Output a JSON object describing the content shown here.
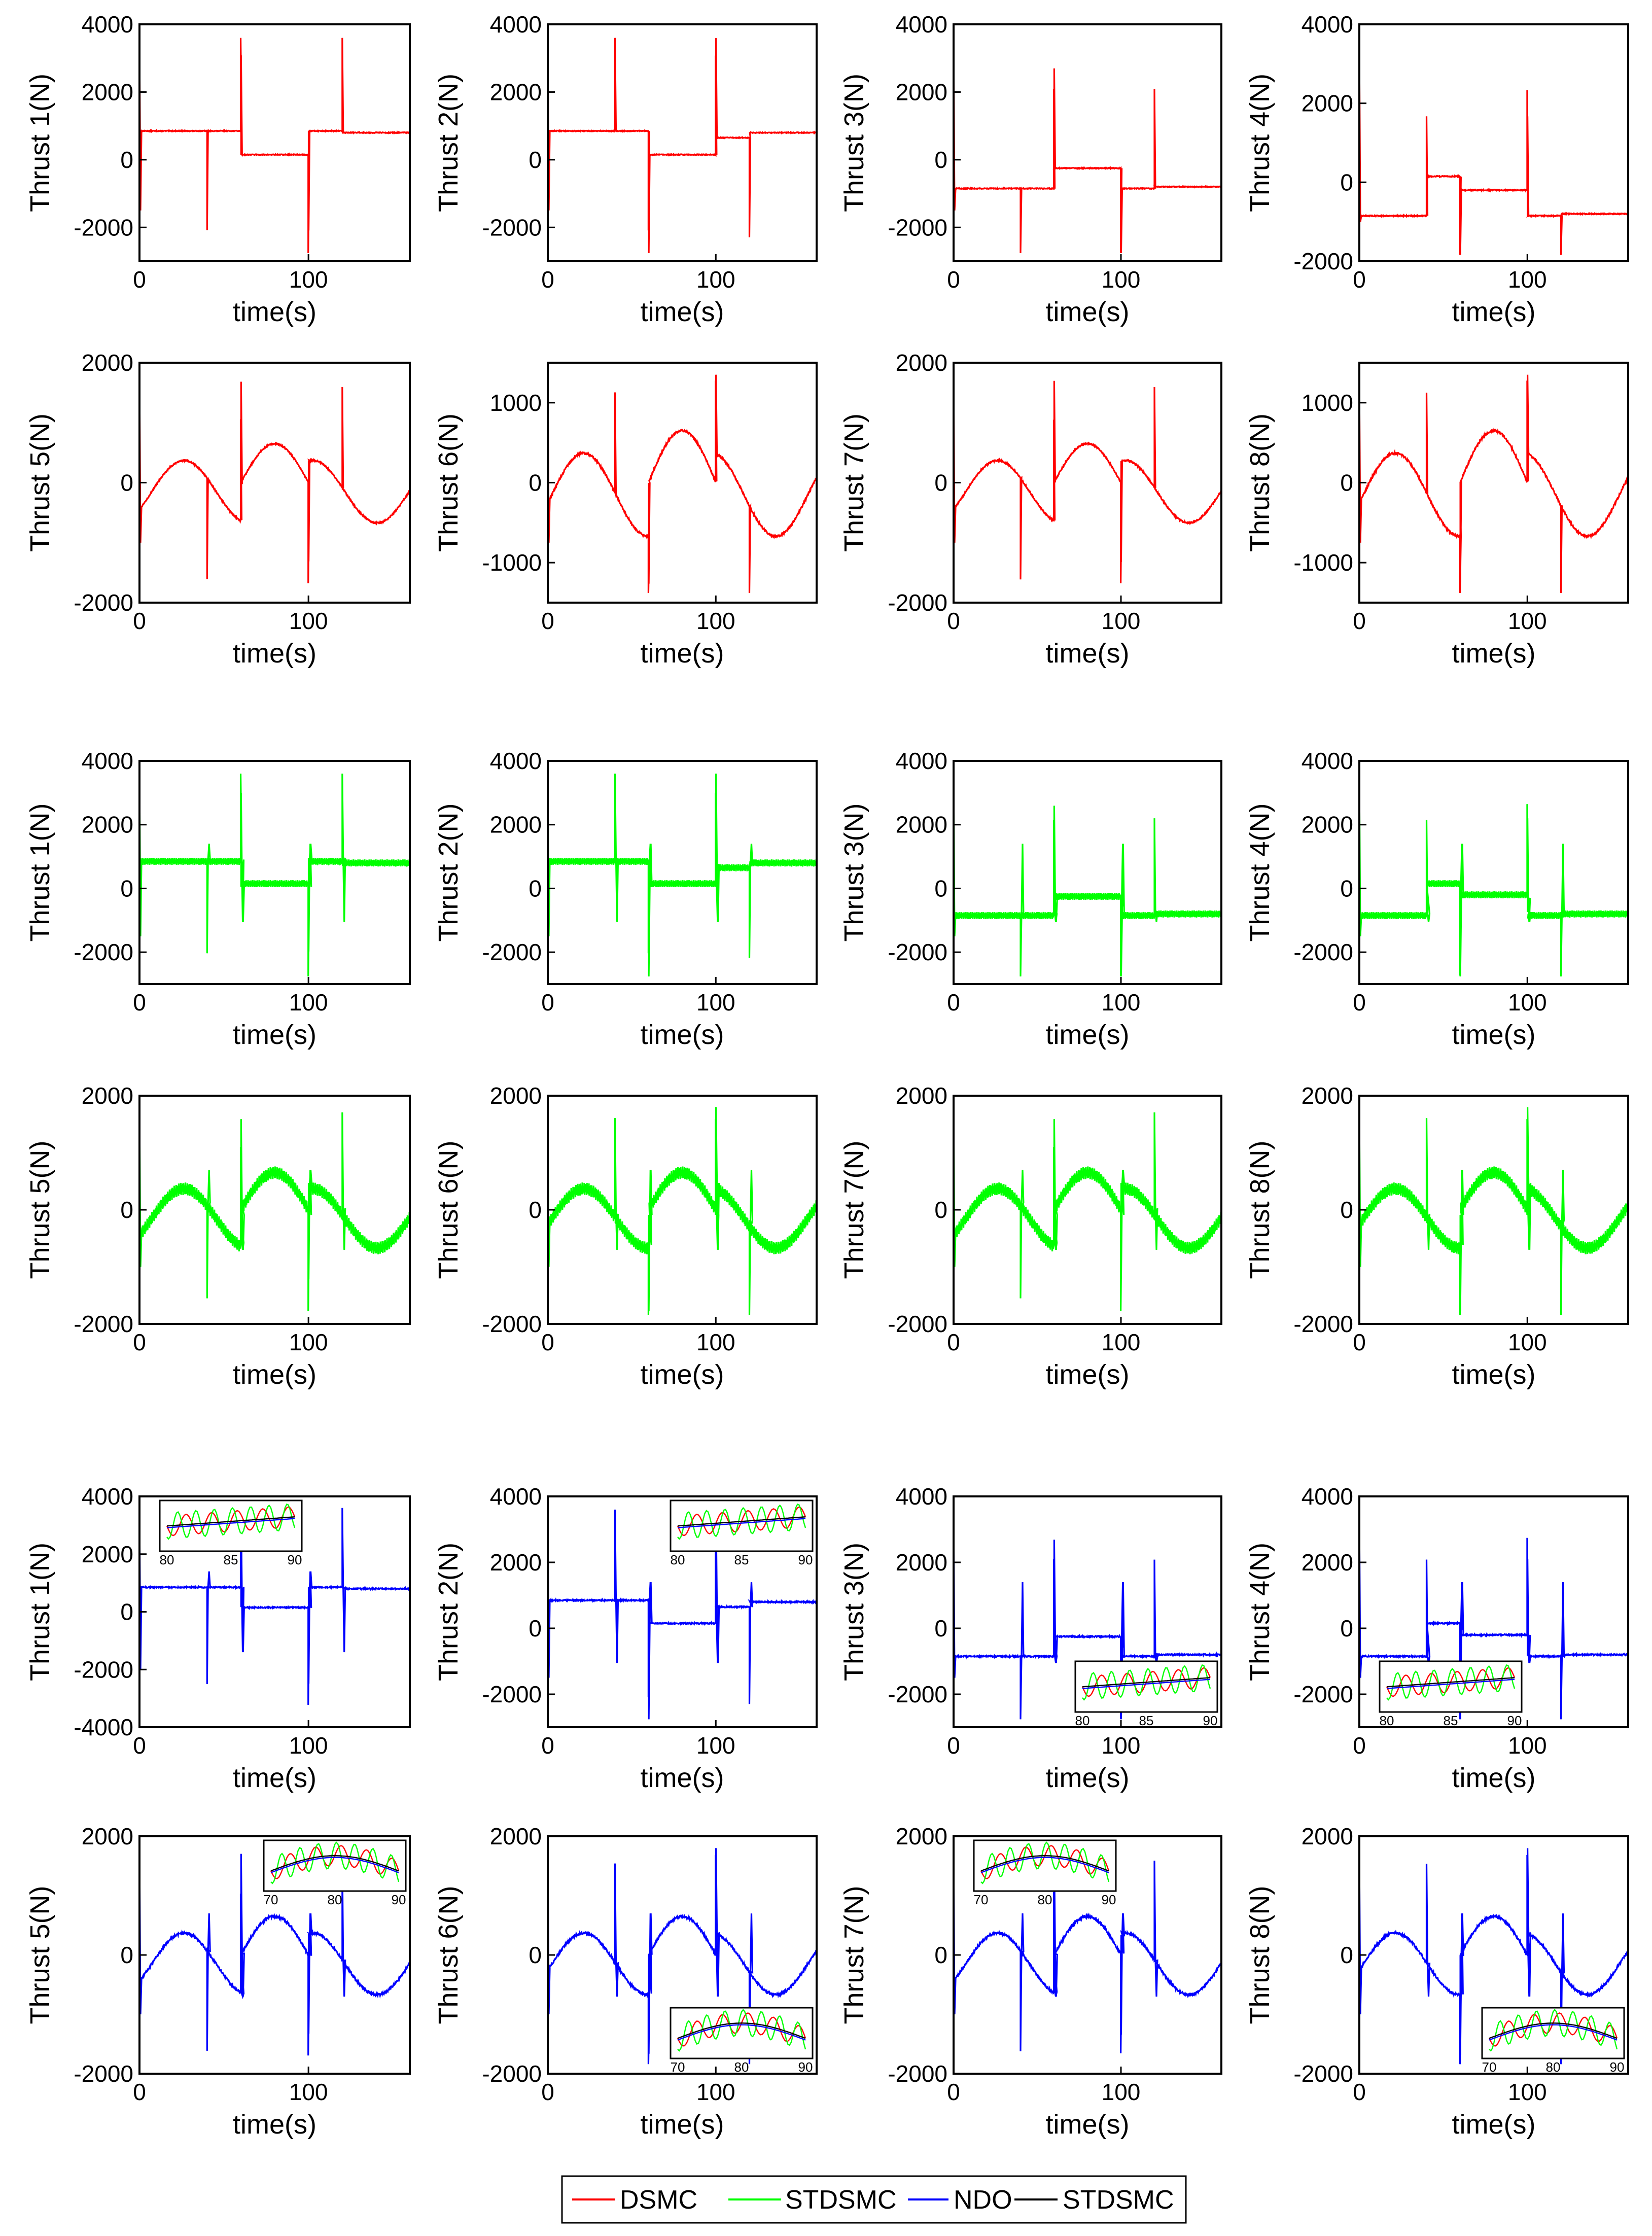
{
  "figure": {
    "x_label": "time(s)",
    "x_ticks": [
      0,
      100
    ],
    "x_range": [
      0,
      160
    ]
  },
  "colors": {
    "DSMC": "#ff0000",
    "STDSMC": "#00ff00",
    "NDO-STDSMC": "#0000ff",
    "axis": "#000000"
  },
  "legend": {
    "entries": [
      {
        "name": "DSMC",
        "color": "#ff0000"
      },
      {
        "name": "STDSMC",
        "color": "#00ff00"
      },
      {
        "name": "NDO",
        "color": "#0000ff"
      },
      {
        "name": "STDSMC",
        "color": "#000000"
      }
    ]
  },
  "chart_data": [
    {
      "type": "line",
      "group": "DSMC",
      "thruster": 1,
      "ylabel": "Thrust 1(N)",
      "ylim": [
        -3000,
        4000
      ],
      "yticks": [
        -2000,
        0,
        2000,
        4000
      ],
      "xlabel": "time(s)",
      "x": [
        0,
        100
      ],
      "y": [
        0,
        0
      ]
    },
    {
      "type": "line",
      "group": "DSMC",
      "thruster": 2,
      "ylabel": "Thrust 2(N)",
      "ylim": [
        -3000,
        4000
      ],
      "yticks": [
        -2000,
        0,
        2000,
        4000
      ],
      "xlabel": "time(s)"
    },
    {
      "type": "line",
      "group": "DSMC",
      "thruster": 3,
      "ylabel": "Thrust 3(N)",
      "ylim": [
        -3000,
        4000
      ],
      "yticks": [
        -2000,
        0,
        2000,
        4000
      ],
      "xlabel": "time(s)"
    },
    {
      "type": "line",
      "group": "DSMC",
      "thruster": 4,
      "ylabel": "Thrust 4(N)",
      "ylim": [
        -2000,
        4000
      ],
      "yticks": [
        -2000,
        0,
        2000,
        4000
      ],
      "xlabel": "time(s)"
    },
    {
      "type": "line",
      "group": "DSMC",
      "thruster": 5,
      "ylabel": "Thrust 5(N)",
      "ylim": [
        -2000,
        2000
      ],
      "yticks": [
        -2000,
        0,
        2000
      ],
      "xlabel": "time(s)"
    },
    {
      "type": "line",
      "group": "DSMC",
      "thruster": 6,
      "ylabel": "Thrust 6(N)",
      "ylim": [
        -1500,
        1500
      ],
      "yticks": [
        -1000,
        0,
        1000
      ],
      "xlabel": "time(s)"
    },
    {
      "type": "line",
      "group": "DSMC",
      "thruster": 7,
      "ylabel": "Thrust 7(N)",
      "ylim": [
        -2000,
        2000
      ],
      "yticks": [
        -2000,
        0,
        2000
      ],
      "xlabel": "time(s)"
    },
    {
      "type": "line",
      "group": "DSMC",
      "thruster": 8,
      "ylabel": "Thrust 8(N)",
      "ylim": [
        -1500,
        1500
      ],
      "yticks": [
        -1000,
        0,
        1000
      ],
      "xlabel": "time(s)"
    },
    {
      "type": "line",
      "group": "STDSMC",
      "thruster": 1,
      "ylabel": "Thrust 1(N)",
      "ylim": [
        -3000,
        4000
      ],
      "yticks": [
        -2000,
        0,
        2000,
        4000
      ],
      "xlabel": "time(s)"
    },
    {
      "type": "line",
      "group": "STDSMC",
      "thruster": 2,
      "ylabel": "Thrust 2(N)",
      "ylim": [
        -3000,
        4000
      ],
      "yticks": [
        -2000,
        0,
        2000,
        4000
      ],
      "xlabel": "time(s)"
    },
    {
      "type": "line",
      "group": "STDSMC",
      "thruster": 3,
      "ylabel": "Thrust 3(N)",
      "ylim": [
        -3000,
        4000
      ],
      "yticks": [
        -2000,
        0,
        2000,
        4000
      ],
      "xlabel": "time(s)"
    },
    {
      "type": "line",
      "group": "STDSMC",
      "thruster": 4,
      "ylabel": "Thrust 4(N)",
      "ylim": [
        -3000,
        4000
      ],
      "yticks": [
        -2000,
        0,
        2000,
        4000
      ],
      "xlabel": "time(s)"
    },
    {
      "type": "line",
      "group": "STDSMC",
      "thruster": 5,
      "ylabel": "Thrust 5(N)",
      "ylim": [
        -2000,
        2000
      ],
      "yticks": [
        -2000,
        0,
        2000
      ],
      "xlabel": "time(s)"
    },
    {
      "type": "line",
      "group": "STDSMC",
      "thruster": 6,
      "ylabel": "Thrust 6(N)",
      "ylim": [
        -2000,
        2000
      ],
      "yticks": [
        -2000,
        0,
        2000
      ],
      "xlabel": "time(s)"
    },
    {
      "type": "line",
      "group": "STDSMC",
      "thruster": 7,
      "ylabel": "Thrust 7(N)",
      "ylim": [
        -2000,
        2000
      ],
      "yticks": [
        -2000,
        0,
        2000
      ],
      "xlabel": "time(s)"
    },
    {
      "type": "line",
      "group": "STDSMC",
      "thruster": 8,
      "ylabel": "Thrust 8(N)",
      "ylim": [
        -2000,
        2000
      ],
      "yticks": [
        -2000,
        0,
        2000
      ],
      "xlabel": "time(s)"
    },
    {
      "type": "line",
      "group": "NDO-STDSMC",
      "thruster": 1,
      "ylabel": "Thrust 1(N)",
      "ylim": [
        -4000,
        4000
      ],
      "yticks": [
        -4000,
        -2000,
        0,
        2000,
        4000
      ],
      "xlabel": "time(s)",
      "inset": {
        "pos": "top-left",
        "xticks": [
          80,
          85,
          90
        ]
      }
    },
    {
      "type": "line",
      "group": "NDO-STDSMC",
      "thruster": 2,
      "ylabel": "Thrust 2(N)",
      "ylim": [
        -3000,
        4000
      ],
      "yticks": [
        -2000,
        0,
        2000,
        4000
      ],
      "xlabel": "time(s)",
      "inset": {
        "pos": "top-right",
        "xticks": [
          80,
          85,
          90
        ]
      }
    },
    {
      "type": "line",
      "group": "NDO-STDSMC",
      "thruster": 3,
      "ylabel": "Thrust 3(N)",
      "ylim": [
        -3000,
        4000
      ],
      "yticks": [
        -2000,
        0,
        2000,
        4000
      ],
      "xlabel": "time(s)",
      "inset": {
        "pos": "bottom-right",
        "xticks": [
          80,
          85,
          90
        ]
      }
    },
    {
      "type": "line",
      "group": "NDO-STDSMC",
      "thruster": 4,
      "ylabel": "Thrust 4(N)",
      "ylim": [
        -3000,
        4000
      ],
      "yticks": [
        -2000,
        0,
        2000,
        4000
      ],
      "xlabel": "time(s)",
      "inset": {
        "pos": "bottom-left",
        "xticks": [
          80,
          85,
          90
        ]
      }
    },
    {
      "type": "line",
      "group": "NDO-STDSMC",
      "thruster": 5,
      "ylabel": "Thrust 5(N)",
      "ylim": [
        -2000,
        2000
      ],
      "yticks": [
        -2000,
        0,
        2000
      ],
      "xlabel": "time(s)",
      "inset": {
        "pos": "top-right",
        "xticks": [
          70,
          80,
          90
        ]
      }
    },
    {
      "type": "line",
      "group": "NDO-STDSMC",
      "thruster": 6,
      "ylabel": "Thrust 6(N)",
      "ylim": [
        -2000,
        2000
      ],
      "yticks": [
        -2000,
        0,
        2000
      ],
      "xlabel": "time(s)",
      "inset": {
        "pos": "bottom-right",
        "xticks": [
          70,
          80,
          90
        ]
      }
    },
    {
      "type": "line",
      "group": "NDO-STDSMC",
      "thruster": 7,
      "ylabel": "Thrust 7(N)",
      "ylim": [
        -2000,
        2000
      ],
      "yticks": [
        -2000,
        0,
        2000
      ],
      "xlabel": "time(s)",
      "inset": {
        "pos": "top-left",
        "xticks": [
          70,
          80,
          90
        ]
      }
    },
    {
      "type": "line",
      "group": "NDO-STDSMC",
      "thruster": 8,
      "ylabel": "Thrust 8(N)",
      "ylim": [
        -2000,
        2000
      ],
      "yticks": [
        -2000,
        0,
        2000
      ],
      "xlabel": "time(s)",
      "inset": {
        "pos": "bottom-right",
        "xticks": [
          70,
          80,
          90
        ]
      }
    }
  ]
}
